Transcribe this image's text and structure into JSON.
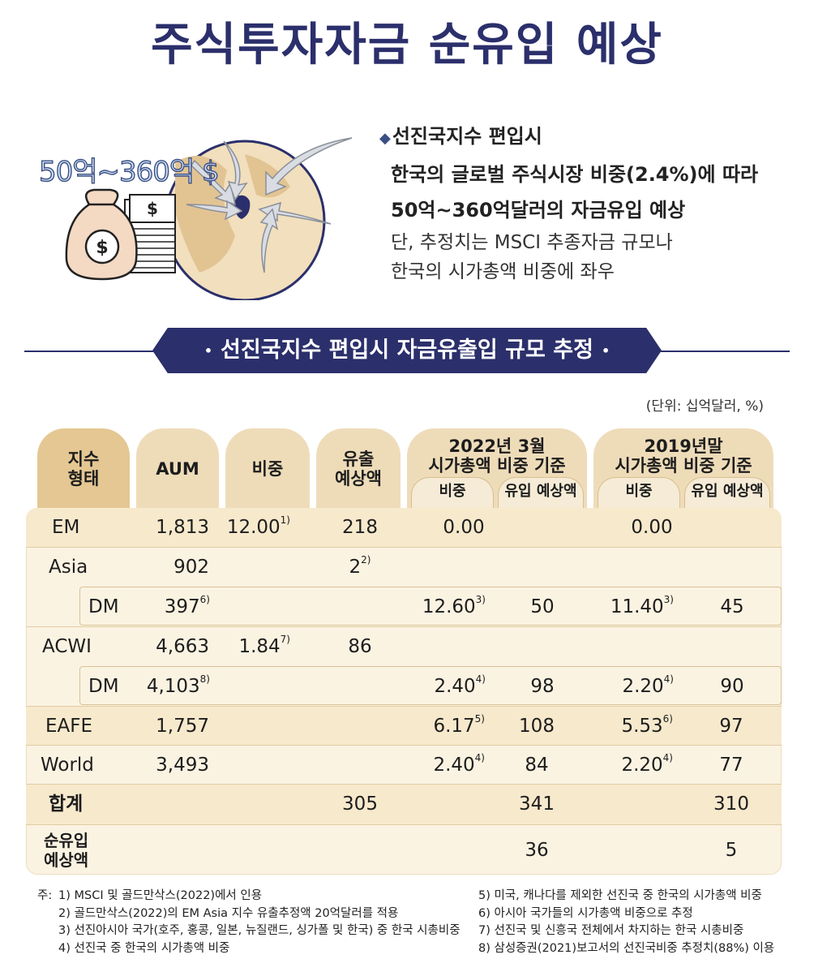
{
  "title": "주식투자자금 순유입 예상",
  "illustration": {
    "amount_label": "50억~360억 $",
    "bill_symbol": "$",
    "bag_symbol": "$",
    "colors": {
      "globe": "#f1dfbd",
      "land": "#e2c493",
      "arrow": "#d9dde3",
      "korea": "#2b2f6b"
    }
  },
  "description": {
    "heading": "선진국지수 편입시",
    "line1": "한국의 글로벌 주식시장 비중(2.4%)에 따라",
    "line2": "50억~360억달러의 자금유입 예상",
    "note1": "단, 추정치는 MSCI 추종자금 규모나",
    "note2": "한국의 시가총액 비중에 좌우"
  },
  "section_title": "선진국지수 편입시 자금유출입 규모 추정",
  "unit": "(단위: 십억달러, %)",
  "table": {
    "headers": {
      "index_type": "지수\n형태",
      "aum": "AUM",
      "weight": "비중",
      "outflow": "유출\n예상액",
      "g2022": "2022년 3월\n시가총액 비중 기준",
      "g2019": "2019년말\n시가총액 비중 기준",
      "sub_weight": "비중",
      "sub_inflow": "유입 예상액"
    },
    "rows": [
      {
        "name": "EM",
        "aum": "1,813",
        "weight": "12.00",
        "weight_note": "1)",
        "outflow": "218",
        "w22": "0.00",
        "w22_note": "",
        "in22": "",
        "w19": "0.00",
        "w19_note": "",
        "in19": ""
      },
      {
        "name": "Asia",
        "aum": "902",
        "weight": "",
        "weight_note": "",
        "outflow": "2",
        "outflow_note": "2)",
        "w22": "",
        "w22_note": "",
        "in22": "",
        "w19": "",
        "w19_note": "",
        "in19": ""
      },
      {
        "name": "DM",
        "aum": "397",
        "aum_note": "6)",
        "weight": "",
        "weight_note": "",
        "outflow": "",
        "w22": "12.60",
        "w22_note": "3)",
        "in22": "50",
        "w19": "11.40",
        "w19_note": "3)",
        "in19": "45"
      },
      {
        "name": "ACWI",
        "aum": "4,663",
        "weight": "1.84",
        "weight_note": "7)",
        "outflow": "86",
        "w22": "",
        "w22_note": "",
        "in22": "",
        "w19": "",
        "w19_note": "",
        "in19": ""
      },
      {
        "name": "DM",
        "aum": "4,103",
        "aum_note": "8)",
        "weight": "",
        "weight_note": "",
        "outflow": "",
        "w22": "2.40",
        "w22_note": "4)",
        "in22": "98",
        "w19": "2.20",
        "w19_note": "4)",
        "in19": "90"
      },
      {
        "name": "EAFE",
        "aum": "1,757",
        "weight": "",
        "weight_note": "",
        "outflow": "",
        "w22": "6.17",
        "w22_note": "5)",
        "in22": "108",
        "w19": "5.53",
        "w19_note": "6)",
        "in19": "97"
      },
      {
        "name": "World",
        "aum": "3,493",
        "weight": "",
        "weight_note": "",
        "outflow": "",
        "w22": "2.40",
        "w22_note": "4)",
        "in22": "84",
        "w19": "2.20",
        "w19_note": "4)",
        "in19": "77"
      }
    ],
    "total": {
      "label": "합계",
      "outflow": "305",
      "in22": "341",
      "in19": "310"
    },
    "net": {
      "label1": "순유입",
      "label2": "예상액",
      "in22": "36",
      "in19": "5"
    }
  },
  "notes": {
    "prefix": "주:",
    "left": [
      "1) MSCI 및 골드만삭스(2022)에서 인용",
      "2) 골드만삭스(2022)의 EM Asia 지수 유출추정액 20억달러를 적용",
      "3) 선진아시아 국가(호주, 홍콩, 일본, 뉴질랜드, 싱가폴 및 한국) 중 한국 시총비중",
      "4) 선진국 중 한국의 시가총액 비중"
    ],
    "right": [
      "5) 미국, 캐나다를 제외한 선진국 중 한국의 시가총액 비중",
      "6) 아시아 국가들의 시가총액 비중으로 추정",
      "7) 선진국 및 신흥국 전체에서 차지하는 한국 시총비중",
      "8) 삼성증권(2021)보고서의 선진국비중 추정치(88%) 이용"
    ]
  }
}
